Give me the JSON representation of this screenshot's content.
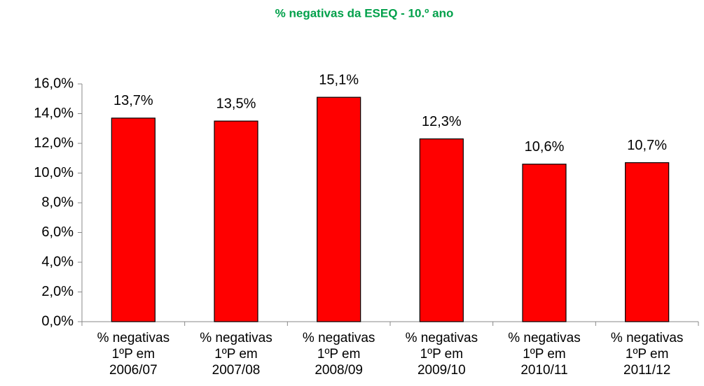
{
  "chart_data": {
    "type": "bar",
    "title": "% negativas da ESEQ - 10.º ano",
    "categories": [
      "% negativas\n1ºP em\n2006/07",
      "% negativas\n1ºP em\n2007/08",
      "% negativas\n1ºP em\n2008/09",
      "% negativas\n1ºP em\n2009/10",
      "% negativas\n1ºP em\n2010/11",
      "% negativas\n1ºP em\n2011/12"
    ],
    "values": [
      13.7,
      13.5,
      15.1,
      12.3,
      10.6,
      10.7
    ],
    "value_labels": [
      "13,7%",
      "13,5%",
      "15,1%",
      "12,3%",
      "10,6%",
      "10,7%"
    ],
    "color": "#ff0000",
    "ylim": [
      0,
      16
    ],
    "yticks": [
      {
        "value": 0,
        "label": "0,0%"
      },
      {
        "value": 2,
        "label": "2,0%"
      },
      {
        "value": 4,
        "label": "4,0%"
      },
      {
        "value": 6,
        "label": "6,0%"
      },
      {
        "value": 8,
        "label": "8,0%"
      },
      {
        "value": 10,
        "label": "10,0%"
      },
      {
        "value": 12,
        "label": "12,0%"
      },
      {
        "value": 14,
        "label": "14,0%"
      },
      {
        "value": 16,
        "label": "16,0%"
      }
    ],
    "grid": false
  }
}
